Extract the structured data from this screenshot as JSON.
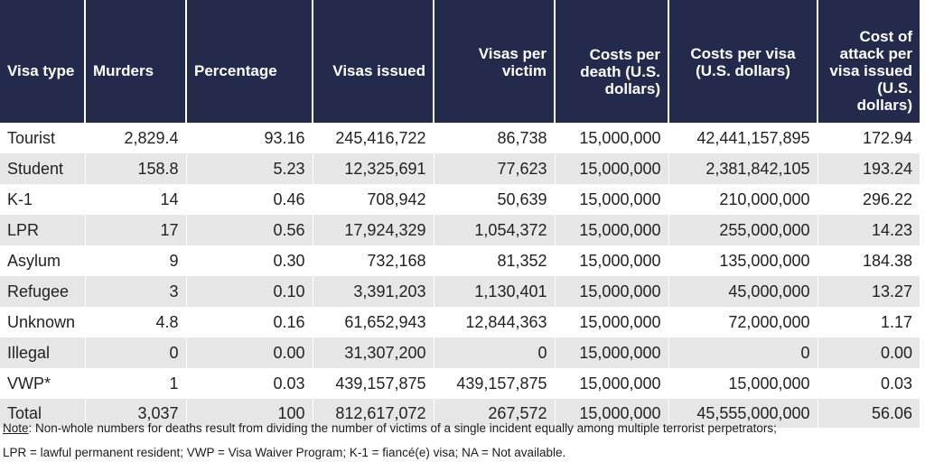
{
  "table": {
    "headers": [
      "Visa type",
      "Murders",
      "Percentage",
      "Visas issued",
      "Visas per victim",
      "Costs per death (U.S. dollars)",
      "Costs per visa (U.S. dollars)",
      "Cost of attack per visa issued (U.S. dollars)"
    ],
    "rows": [
      [
        "Tourist",
        "2,829.4",
        "93.16",
        "245,416,722",
        "86,738",
        "15,000,000",
        "42,441,157,895",
        "172.94"
      ],
      [
        "Student",
        "158.8",
        "5.23",
        "12,325,691",
        "77,623",
        "15,000,000",
        "2,381,842,105",
        "193.24"
      ],
      [
        "K-1",
        "14",
        "0.46",
        "708,942",
        "50,639",
        "15,000,000",
        "210,000,000",
        "296.22"
      ],
      [
        "LPR",
        "17",
        "0.56",
        "17,924,329",
        "1,054,372",
        "15,000,000",
        "255,000,000",
        "14.23"
      ],
      [
        "Asylum",
        "9",
        "0.30",
        "732,168",
        "81,352",
        "15,000,000",
        "135,000,000",
        "184.38"
      ],
      [
        "Refugee",
        "3",
        "0.10",
        "3,391,203",
        "1,130,401",
        "15,000,000",
        "45,000,000",
        "13.27"
      ],
      [
        "Unknown",
        "4.8",
        "0.16",
        "61,652,943",
        "12,844,363",
        "15,000,000",
        "72,000,000",
        "1.17"
      ],
      [
        "Illegal",
        "0",
        "0.00",
        "31,307,200",
        "0",
        "15,000,000",
        "0",
        "0.00"
      ],
      [
        "VWP*",
        "1",
        "0.03",
        "439,157,875",
        "439,157,875",
        "15,000,000",
        "15,000,000",
        "0.03"
      ],
      [
        "Total",
        "3,037",
        "100",
        "812,617,072",
        "267,572",
        "15,000,000",
        "45,555,000,000",
        "56.06"
      ]
    ]
  },
  "notes": {
    "note_label": "Note",
    "note_text": ": Non-whole numbers for deaths result from dividing the number of victims of a single incident equally among multiple terrorist perpetrators;",
    "abbreviations": "LPR = lawful permanent resident; VWP = Visa Waiver Program; K-1 = fiancé(e) visa; NA = Not available."
  }
}
